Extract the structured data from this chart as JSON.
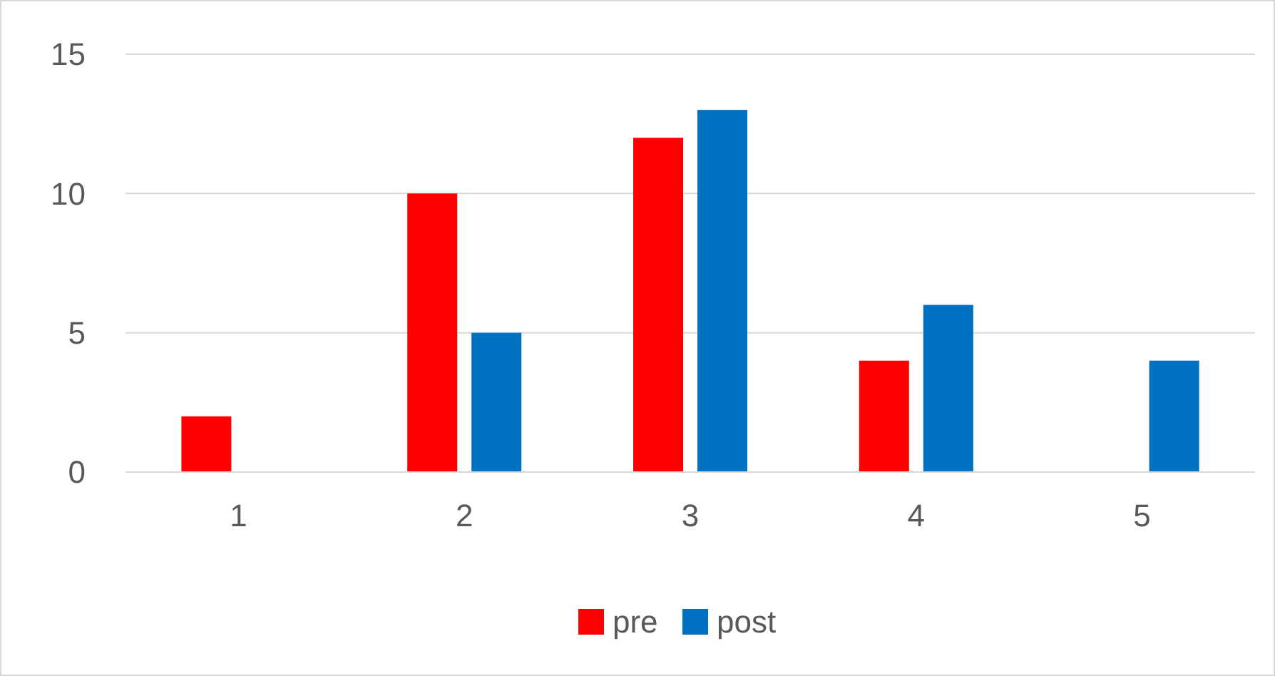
{
  "chart_data": {
    "type": "bar",
    "categories": [
      "1",
      "2",
      "3",
      "4",
      "5"
    ],
    "series": [
      {
        "name": "pre",
        "color": "#ff0000",
        "values": [
          2,
          10,
          12,
          4,
          0
        ]
      },
      {
        "name": "post",
        "color": "#0070c0",
        "values": [
          0,
          5,
          13,
          6,
          4
        ]
      }
    ],
    "ylim": [
      0,
      15
    ],
    "yticks": [
      0,
      5,
      10,
      15
    ],
    "grid": "y",
    "legend": "bottom"
  }
}
